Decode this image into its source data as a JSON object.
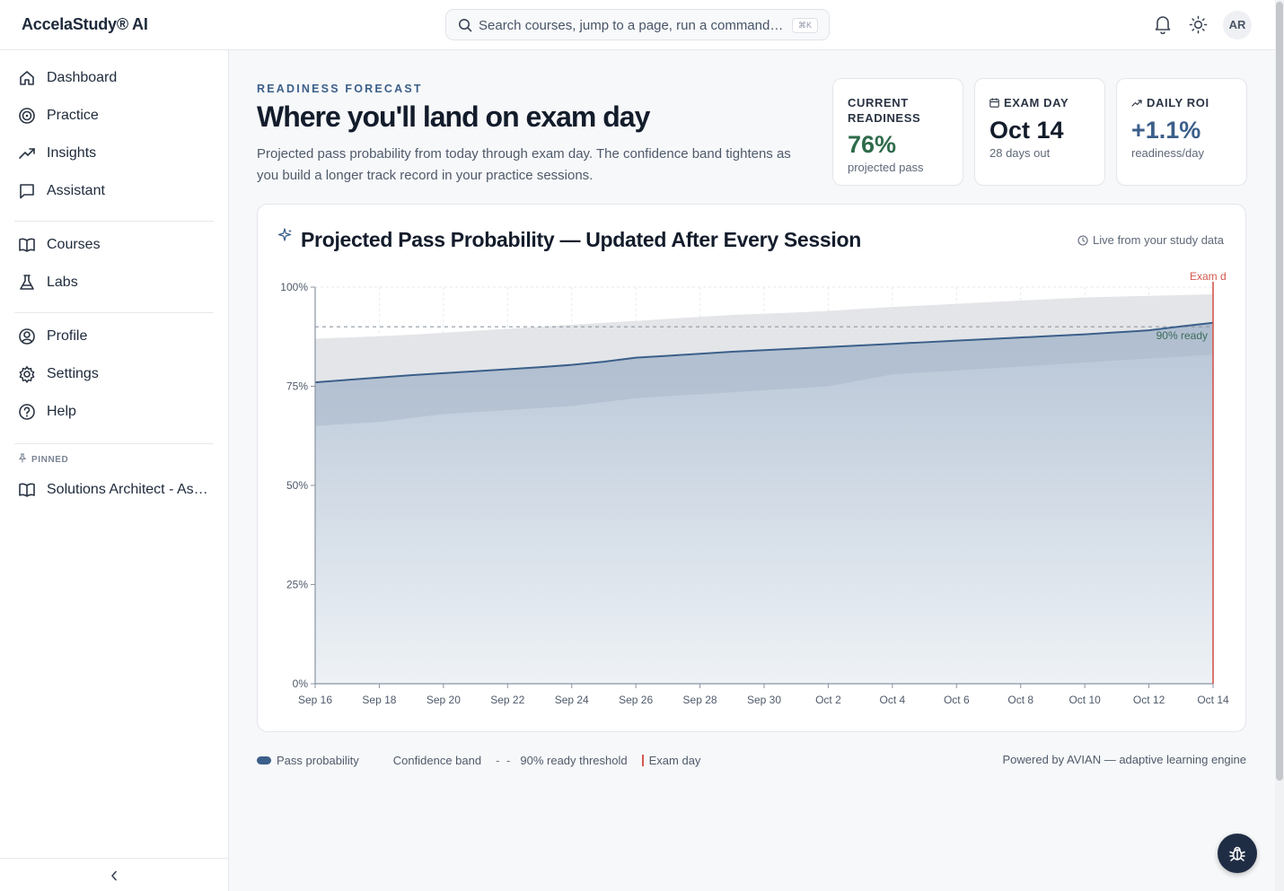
{
  "app": {
    "brand": "AccelaStudy® AI"
  },
  "search": {
    "placeholder": "Search courses, jump to a page, run a command…",
    "shortcut": "⌘K"
  },
  "header": {
    "avatar_initials": "AR"
  },
  "sidebar": {
    "items": [
      {
        "label": "Dashboard",
        "icon": "home-icon"
      },
      {
        "label": "Practice",
        "icon": "target-icon"
      },
      {
        "label": "Insights",
        "icon": "trending-up-icon"
      },
      {
        "label": "Assistant",
        "icon": "chat-icon"
      },
      {
        "label": "Courses",
        "icon": "book-icon"
      },
      {
        "label": "Labs",
        "icon": "flask-icon"
      },
      {
        "label": "Profile",
        "icon": "user-circle-icon"
      },
      {
        "label": "Settings",
        "icon": "gear-icon"
      },
      {
        "label": "Help",
        "icon": "help-icon"
      }
    ],
    "pinned_label": "PINNED",
    "pinned_items": [
      {
        "label": "Solutions Architect - As…",
        "icon": "book-icon"
      }
    ]
  },
  "main": {
    "eyebrow": "READINESS FORECAST",
    "title": "Where you'll land on exam day",
    "subtitle": "Projected pass probability from today through exam day. The confidence band tightens as you build a longer track record in your practice sessions."
  },
  "stats": [
    {
      "label_line1": "CURRENT",
      "label_line2": "READINESS",
      "value": "76%",
      "sub": "projected pass",
      "color": "#2e6b4a"
    },
    {
      "label": "EXAM DAY",
      "value": "Oct 14",
      "sub": "28 days out",
      "color": "#131c2b"
    },
    {
      "label": "DAILY ROI",
      "value": "+1.1%",
      "sub": "readiness/day",
      "color": "#3b5f8a"
    }
  ],
  "chart": {
    "title": "Projected Pass Probability — Updated After Every Session",
    "live_label": "Live from your study data",
    "threshold_label": "90% ready",
    "exam_marker_label": "Exam d"
  },
  "chart_data": {
    "type": "area",
    "x": [
      "Sep 16",
      "Sep 17",
      "Sep 18",
      "Sep 19",
      "Sep 20",
      "Sep 21",
      "Sep 22",
      "Sep 23",
      "Sep 24",
      "Sep 25",
      "Sep 26",
      "Sep 27",
      "Sep 28",
      "Sep 29",
      "Sep 30",
      "Oct 1",
      "Oct 2",
      "Oct 3",
      "Oct 4",
      "Oct 5",
      "Oct 6",
      "Oct 7",
      "Oct 8",
      "Oct 9",
      "Oct 10",
      "Oct 11",
      "Oct 12",
      "Oct 13",
      "Oct 14"
    ],
    "x_tick_labels": [
      "Sep 16",
      "Sep 18",
      "Sep 20",
      "Sep 22",
      "Sep 24",
      "Sep 26",
      "Sep 28",
      "Sep 30",
      "Oct 2",
      "Oct 4",
      "Oct 6",
      "Oct 8",
      "Oct 10",
      "Oct 12",
      "Oct 14"
    ],
    "series": [
      {
        "name": "Pass probability",
        "values": [
          76,
          76.6,
          77.2,
          77.8,
          78.3,
          78.8,
          79.3,
          79.8,
          80.4,
          81.2,
          82.2,
          82.7,
          83.2,
          83.7,
          84.1,
          84.5,
          84.9,
          85.3,
          85.7,
          86.1,
          86.5,
          86.9,
          87.3,
          87.7,
          88.1,
          88.6,
          89.1,
          90.1,
          91
        ]
      },
      {
        "name": "Confidence band",
        "lower": [
          65,
          65.5,
          66,
          67,
          68,
          68.5,
          69,
          69.5,
          70,
          71,
          72,
          72.5,
          73,
          73.5,
          74,
          74.5,
          75,
          76.5,
          78,
          78.5,
          79,
          79.5,
          80,
          80.5,
          81,
          81.5,
          82,
          82.5,
          83
        ],
        "upper": [
          87,
          87.3,
          87.6,
          88,
          88.5,
          89,
          89.5,
          90,
          90.5,
          91,
          91.5,
          92,
          92.5,
          93,
          93.3,
          93.6,
          94,
          94.5,
          95,
          95.4,
          95.8,
          96.2,
          96.6,
          97,
          97.4,
          97.6,
          97.8,
          98,
          98.2
        ]
      }
    ],
    "threshold": 90,
    "threshold_name": "90% ready threshold",
    "exam_day": "Oct 14",
    "exam_name": "Exam day",
    "ylim": [
      0,
      100
    ],
    "y_ticks": [
      "0%",
      "25%",
      "50%",
      "75%",
      "100%"
    ],
    "grid": true,
    "legend_placement": "bottom-left"
  },
  "legend": {
    "pass": "Pass probability",
    "band": "Confidence band",
    "threshold": "90% ready threshold",
    "exam": "Exam day",
    "powered": "Powered by AVIAN — adaptive learning engine"
  },
  "colors": {
    "line": "#3b5f8a",
    "band": "#e3e5e8",
    "area_top": "#b9c7d7",
    "exam": "#d4574e",
    "threshold": "#9aa3ae"
  }
}
